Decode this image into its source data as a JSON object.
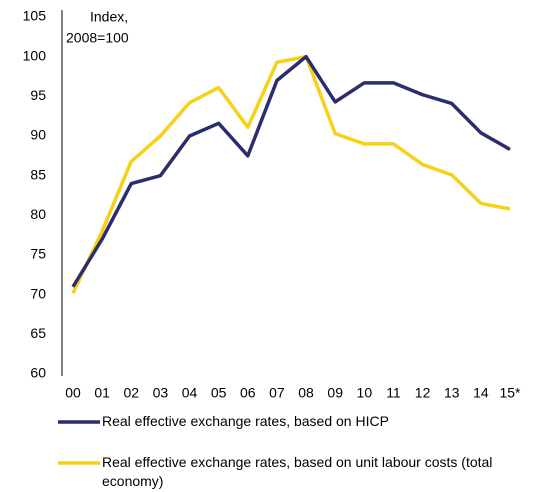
{
  "chart_data": {
    "type": "line",
    "annotation": [
      "Index,",
      "2008=100"
    ],
    "categories": [
      "00",
      "01",
      "02",
      "03",
      "04",
      "05",
      "06",
      "07",
      "08",
      "09",
      "10",
      "11",
      "12",
      "13",
      "14",
      "15*"
    ],
    "series": [
      {
        "name": "Real effective exchange rates, based on HICP",
        "color": "#2b2d6e",
        "values": [
          71,
          77,
          84,
          85,
          90,
          91.6,
          87.5,
          97,
          100,
          94.3,
          96.7,
          96.7,
          95.2,
          94.1,
          90.4,
          88.3
        ]
      },
      {
        "name": "Real effective exchange rates, based on unit labour costs (total economy)",
        "color": "#f7d117",
        "values": [
          70.2,
          78,
          86.8,
          90,
          94.2,
          96.1,
          91.1,
          99.3,
          100,
          90.3,
          89,
          89,
          86.4,
          85.1,
          81.5,
          80.8
        ]
      }
    ],
    "ylim": [
      60,
      105
    ],
    "yticks": [
      60,
      65,
      70,
      75,
      80,
      85,
      90,
      95,
      100,
      105
    ]
  }
}
